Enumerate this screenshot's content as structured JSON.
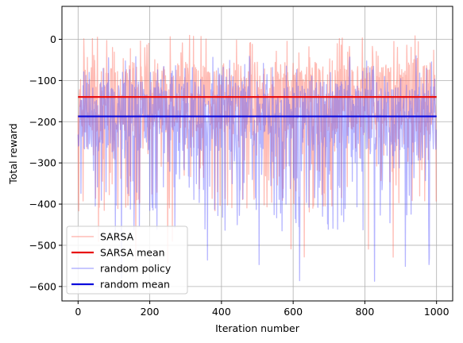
{
  "chart_data": {
    "type": "line",
    "title": "",
    "xlabel": "Iteration number",
    "ylabel": "Total reward",
    "xlim": [
      -45,
      1045
    ],
    "ylim": [
      -635,
      80
    ],
    "xticks": [
      0,
      200,
      400,
      600,
      800,
      1000
    ],
    "yticks": [
      0,
      -100,
      -200,
      -300,
      -400,
      -500,
      -600
    ],
    "grid": true,
    "legend_position": "lower-left",
    "series": [
      {
        "name": "SARSA",
        "kind": "noisy-line",
        "color": "#ff6b5a",
        "alpha": 0.45,
        "points": 1000,
        "mean": -140,
        "min": -550,
        "max": 35
      },
      {
        "name": "SARSA mean",
        "kind": "hline",
        "color": "#e81010",
        "y": -140
      },
      {
        "name": "random policy",
        "kind": "noisy-line",
        "color": "#5b5bff",
        "alpha": 0.45,
        "points": 1000,
        "mean": -187,
        "min": -590,
        "max": 48
      },
      {
        "name": "random mean",
        "kind": "hline",
        "color": "#0b0bdc",
        "y": -187
      }
    ]
  }
}
